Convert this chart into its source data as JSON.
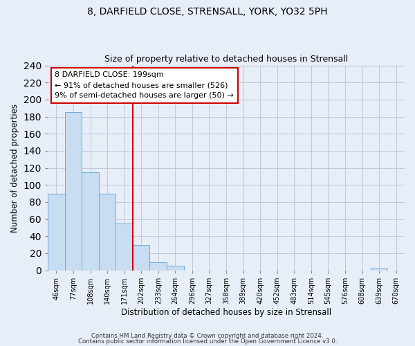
{
  "title1": "8, DARFIELD CLOSE, STRENSALL, YORK, YO32 5PH",
  "title2": "Size of property relative to detached houses in Strensall",
  "xlabel": "Distribution of detached houses by size in Strensall",
  "ylabel": "Number of detached properties",
  "bin_labels": [
    "46sqm",
    "77sqm",
    "108sqm",
    "140sqm",
    "171sqm",
    "202sqm",
    "233sqm",
    "264sqm",
    "296sqm",
    "327sqm",
    "358sqm",
    "389sqm",
    "420sqm",
    "452sqm",
    "483sqm",
    "514sqm",
    "545sqm",
    "576sqm",
    "608sqm",
    "639sqm",
    "670sqm"
  ],
  "bin_counts": [
    90,
    185,
    115,
    90,
    55,
    30,
    9,
    5,
    0,
    0,
    0,
    0,
    0,
    0,
    0,
    0,
    0,
    0,
    0,
    2,
    0
  ],
  "bar_color": "#c9ddf2",
  "bar_edge_color": "#6aacd8",
  "vline_color": "#cc0000",
  "annotation_title": "8 DARFIELD CLOSE: 199sqm",
  "annotation_line1": "← 91% of detached houses are smaller (526)",
  "annotation_line2": "9% of semi-detached houses are larger (50) →",
  "annotation_box_facecolor": "#ffffff",
  "annotation_box_edgecolor": "#cc0000",
  "ylim": [
    0,
    240
  ],
  "yticks": [
    0,
    20,
    40,
    60,
    80,
    100,
    120,
    140,
    160,
    180,
    200,
    220,
    240
  ],
  "footer1": "Contains HM Land Registry data © Crown copyright and database right 2024.",
  "footer2": "Contains public sector information licensed under the Open Government Licence v3.0.",
  "bg_color": "#e8eef8",
  "plot_bg_color": "#e8eef8",
  "grid_color": "#c0c8d8"
}
